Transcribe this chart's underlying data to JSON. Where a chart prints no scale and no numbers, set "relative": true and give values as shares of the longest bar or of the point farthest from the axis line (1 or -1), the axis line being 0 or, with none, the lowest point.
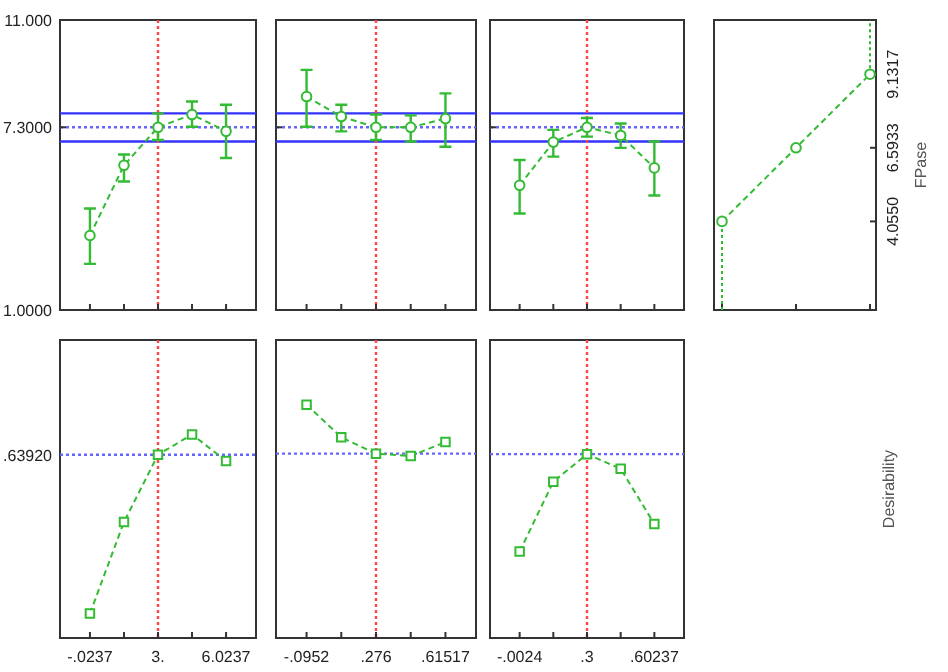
{
  "chart_data": [
    {
      "type": "line",
      "categories": [
        "-.0237",
        null,
        "3.",
        null,
        "6.0237"
      ],
      "series": [
        {
          "color": "#33bb33",
          "values": [
            3.57,
            5.99,
            7.3,
            7.74,
            7.16
          ],
          "errors": [
            [
              2.59,
              4.5
            ],
            [
              5.43,
              6.36
            ],
            [
              6.86,
              7.78
            ],
            [
              7.32,
              8.19
            ],
            [
              6.24,
              8.08
            ]
          ]
        }
      ],
      "ylim": [
        1,
        11
      ],
      "yticks": [
        {
          "value": 1,
          "label": "1.0000"
        },
        {
          "value": 7.3,
          "label": "7.3000"
        },
        {
          "value": 11,
          "label": "11.000"
        }
      ],
      "tick_labels": "y",
      "marker": "circle",
      "line_style": "dashed",
      "ref_lines": [
        {
          "axis": "y",
          "value": 7.78,
          "color": "#3333ff",
          "line_style": "solid"
        },
        {
          "axis": "y",
          "value": 7.3,
          "color": "#6666ff",
          "line_style": "dotted"
        },
        {
          "axis": "y",
          "value": 6.81,
          "color": "#3333ff",
          "line_style": "solid"
        },
        {
          "axis": "x",
          "value": "3.",
          "color": "#ff4444",
          "line_style": "dotted"
        }
      ]
    },
    {
      "type": "line",
      "categories": [
        "-.0952",
        null,
        ".276",
        null,
        ".61517"
      ],
      "series": [
        {
          "color": "#33bb33",
          "values": [
            8.36,
            7.67,
            7.3,
            7.3,
            7.6
          ],
          "errors": [
            [
              7.32,
              9.28
            ],
            [
              7.16,
              8.08
            ],
            [
              6.86,
              7.74
            ],
            [
              6.81,
              7.71
            ],
            [
              6.63,
              8.47
            ]
          ]
        }
      ],
      "ylim": [
        1,
        11
      ],
      "yticks": [
        1,
        7.3,
        11
      ],
      "tick_labels": false,
      "marker": "circle",
      "line_style": "dashed",
      "ref_lines": [
        {
          "axis": "y",
          "value": 7.78,
          "color": "#3333ff",
          "line_style": "solid"
        },
        {
          "axis": "y",
          "value": 7.3,
          "color": "#6666ff",
          "line_style": "dotted"
        },
        {
          "axis": "y",
          "value": 6.81,
          "color": "#3333ff",
          "line_style": "solid"
        },
        {
          "axis": "x",
          "value": ".276",
          "color": "#ff4444",
          "line_style": "dotted"
        }
      ]
    },
    {
      "type": "line",
      "categories": [
        "-.0024",
        null,
        ".3",
        null,
        ".60237"
      ],
      "series": [
        {
          "color": "#33bb33",
          "values": [
            5.3,
            6.79,
            7.3,
            7.02,
            5.9
          ],
          "errors": [
            [
              4.33,
              6.17
            ],
            [
              6.29,
              7.21
            ],
            [
              6.98,
              7.62
            ],
            [
              6.59,
              7.43
            ],
            [
              4.95,
              6.81
            ]
          ]
        }
      ],
      "ylim": [
        1,
        11
      ],
      "yticks": [
        1,
        7.3,
        11
      ],
      "tick_labels": false,
      "marker": "circle",
      "line_style": "dashed",
      "ref_lines": [
        {
          "axis": "y",
          "value": 7.78,
          "color": "#3333ff",
          "line_style": "solid"
        },
        {
          "axis": "y",
          "value": 7.3,
          "color": "#6666ff",
          "line_style": "dotted"
        },
        {
          "axis": "y",
          "value": 6.81,
          "color": "#3333ff",
          "line_style": "solid"
        },
        {
          "axis": "x",
          "value": ".3",
          "color": "#ff4444",
          "line_style": "dotted"
        }
      ]
    },
    {
      "type": "line",
      "ylabel": "FPase",
      "categories": [
        null,
        null,
        null
      ],
      "series": [
        {
          "color": "#33bb33",
          "values": [
            4.055,
            6.5933,
            9.1317
          ],
          "errors": [
            [
              1,
              4.055
            ],
            null,
            [
              9.1317,
              11
            ]
          ]
        }
      ],
      "ylim": [
        1,
        11
      ],
      "yticks": [
        {
          "value": 4.055,
          "label": "4.0550"
        },
        {
          "value": 6.5933,
          "label": "6.5933"
        },
        {
          "value": 9.1317,
          "label": "9.1317"
        }
      ],
      "tick_labels": "y",
      "marker": "circle",
      "line_style": "dashed"
    },
    {
      "type": "line",
      "relative": true,
      "categories": [
        "-.0237",
        null,
        "3.",
        null,
        "6.0237"
      ],
      "series": [
        {
          "color": "#33bb33",
          "values": [
            0.12,
            0.57,
            0.9,
            1,
            0.87
          ]
        }
      ],
      "annotations": [
        ".63920"
      ],
      "marker": "square",
      "line_style": "dashed",
      "ref_lines": [
        {
          "axis": "y",
          "value": 0.9,
          "color": "#6666ff",
          "line_style": "dotted"
        },
        {
          "axis": "x",
          "value": "3.",
          "color": "#ff4444",
          "line_style": "dotted"
        }
      ]
    },
    {
      "type": "line",
      "relative": true,
      "categories": [
        "-.0952",
        null,
        ".276",
        null,
        ".61517"
      ],
      "series": [
        {
          "color": "#33bb33",
          "values": [
            1,
            0.86,
            0.79,
            0.78,
            0.84
          ]
        }
      ],
      "tick_labels": "x",
      "marker": "square",
      "line_style": "dashed",
      "ref_lines": [
        {
          "axis": "y",
          "value": 0.79,
          "color": "#6666ff",
          "line_style": "dotted"
        },
        {
          "axis": "x",
          "value": ".276",
          "color": "#ff4444",
          "line_style": "dotted"
        }
      ]
    },
    {
      "type": "line",
      "relative": true,
      "ylabel": "Desirability",
      "categories": [
        "-.0024",
        null,
        ".3",
        null,
        ".60237"
      ],
      "series": [
        {
          "color": "#33bb33",
          "values": [
            0.47,
            0.85,
            1,
            0.92,
            0.62
          ]
        }
      ],
      "tick_labels": "x",
      "marker": "square",
      "line_style": "dashed",
      "ref_lines": [
        {
          "axis": "y",
          "value": 1,
          "color": "#6666ff",
          "line_style": "dotted"
        },
        {
          "axis": "x",
          "value": ".3",
          "color": "#ff4444",
          "line_style": "dotted"
        }
      ]
    }
  ]
}
